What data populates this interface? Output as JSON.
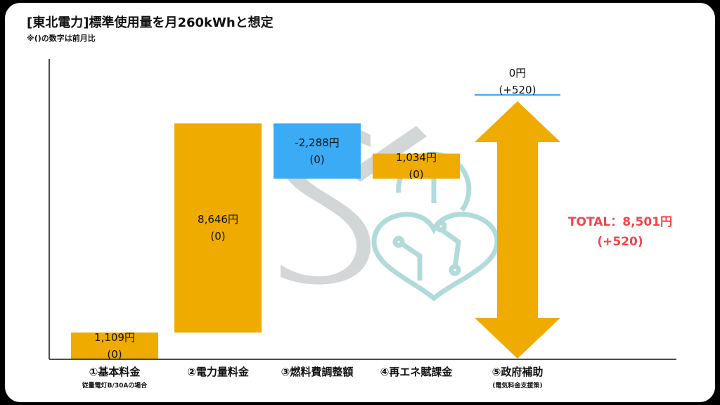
{
  "header": {
    "title": "[東北電力]標準使用量を月260kWhと想定",
    "note": "※()の数字は前月比"
  },
  "chart_data": {
    "type": "bar",
    "subtype": "waterfall",
    "unit": "円",
    "categories": [
      {
        "label": "①基本料金",
        "sublabel": "従量電灯B/30Aの場合"
      },
      {
        "label": "②電力量料金",
        "sublabel": ""
      },
      {
        "label": "③燃料費調整額",
        "sublabel": ""
      },
      {
        "label": "④再エネ賦課金",
        "sublabel": ""
      },
      {
        "label": "⑤政府補助",
        "sublabel": "(電気料金支援策)"
      }
    ],
    "values": [
      1109,
      8646,
      -2288,
      1034,
      0
    ],
    "value_labels": [
      "1,109円",
      "8,646円",
      "-2,288円",
      "1,034円",
      "0円"
    ],
    "change_labels": [
      "(0)",
      "(0)",
      "(0)",
      "(0)",
      "(+520)"
    ],
    "total": {
      "label": "TOTAL：8,501円",
      "change": "(+520)"
    },
    "colors": {
      "positive": "#f0ab00",
      "negative": "#3aabf4",
      "subsidy_line": "#3aabf4",
      "total_text": "#f0464a",
      "arrow": "#f0ab00"
    }
  }
}
